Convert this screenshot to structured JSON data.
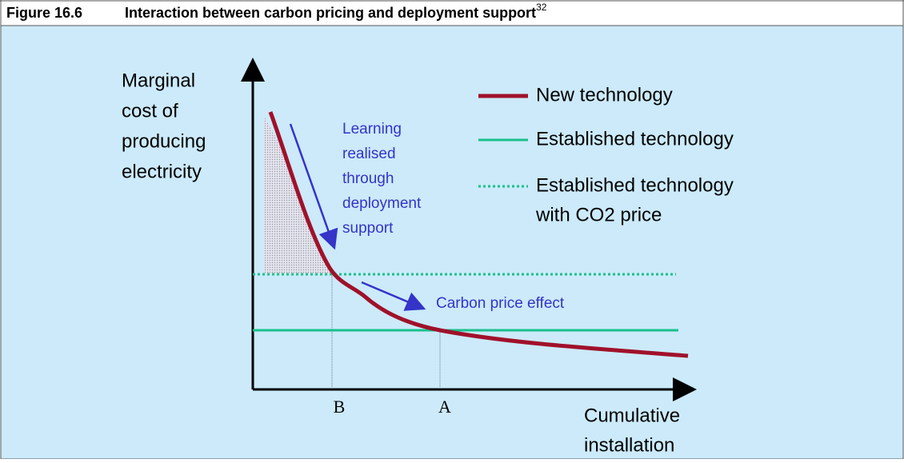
{
  "header": {
    "figure": "Figure 16.6",
    "title": "Interaction between carbon pricing and deployment support",
    "footnote": "32"
  },
  "y_axis_label": [
    "Marginal",
    "cost of",
    "producing",
    "electricity"
  ],
  "x_axis_label": [
    "Cumulative",
    "installation"
  ],
  "x_points": [
    "B",
    "A"
  ],
  "legend": [
    [
      "New technology"
    ],
    [
      "Established technology"
    ],
    [
      "Established technology",
      "with CO2 price"
    ]
  ],
  "annotations": {
    "learning": [
      "Learning",
      "realised",
      "through",
      "deployment",
      "support"
    ],
    "carbon": "Carbon price effect"
  }
}
